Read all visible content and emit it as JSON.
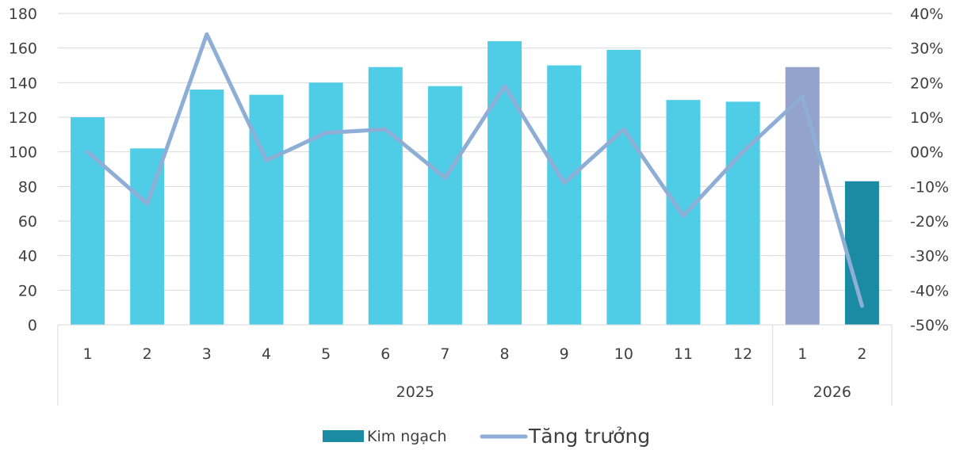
{
  "chart_data": {
    "type": "bar",
    "title": "",
    "categories": [
      "1",
      "2",
      "3",
      "4",
      "5",
      "6",
      "7",
      "8",
      "9",
      "10",
      "11",
      "12",
      "1",
      "2"
    ],
    "groups": [
      {
        "label": "2025",
        "count": 12
      },
      {
        "label": "2026",
        "count": 2
      }
    ],
    "series": [
      {
        "name": "Kim ngạch",
        "type": "bar",
        "axis": "left",
        "values": [
          120,
          102,
          136,
          133,
          140,
          149,
          138,
          164,
          150,
          159,
          130,
          129,
          149,
          83
        ],
        "colors": [
          "#4fcde6",
          "#4fcde6",
          "#4fcde6",
          "#4fcde6",
          "#4fcde6",
          "#4fcde6",
          "#4fcde6",
          "#4fcde6",
          "#4fcde6",
          "#4fcde6",
          "#4fcde6",
          "#4fcde6",
          "#94a3cc",
          "#1b8aa3"
        ]
      },
      {
        "name": "Tăng trưởng",
        "type": "line",
        "axis": "right",
        "values": [
          0,
          -15,
          34,
          -2.5,
          5.5,
          6.5,
          -7.5,
          19,
          -9,
          6.5,
          -18.5,
          0,
          16,
          -44.5
        ],
        "color": "#8eaed6"
      }
    ],
    "y_left": {
      "min": 0,
      "max": 180,
      "ticks": [
        "0",
        "20",
        "40",
        "60",
        "80",
        "100",
        "120",
        "140",
        "160",
        "180"
      ]
    },
    "y_right": {
      "min": -50,
      "max": 40,
      "ticks": [
        "-50%",
        "-40%",
        "-30%",
        "-20%",
        "-10%",
        "00%",
        "10%",
        "20%",
        "30%",
        "40%"
      ]
    },
    "grid": true,
    "legend": {
      "position": "bottom",
      "bar_label": "Kim ngạch",
      "line_label": "Tăng trưởng",
      "bar_color": "#1b8aa3",
      "line_color": "#8eaed6"
    }
  }
}
